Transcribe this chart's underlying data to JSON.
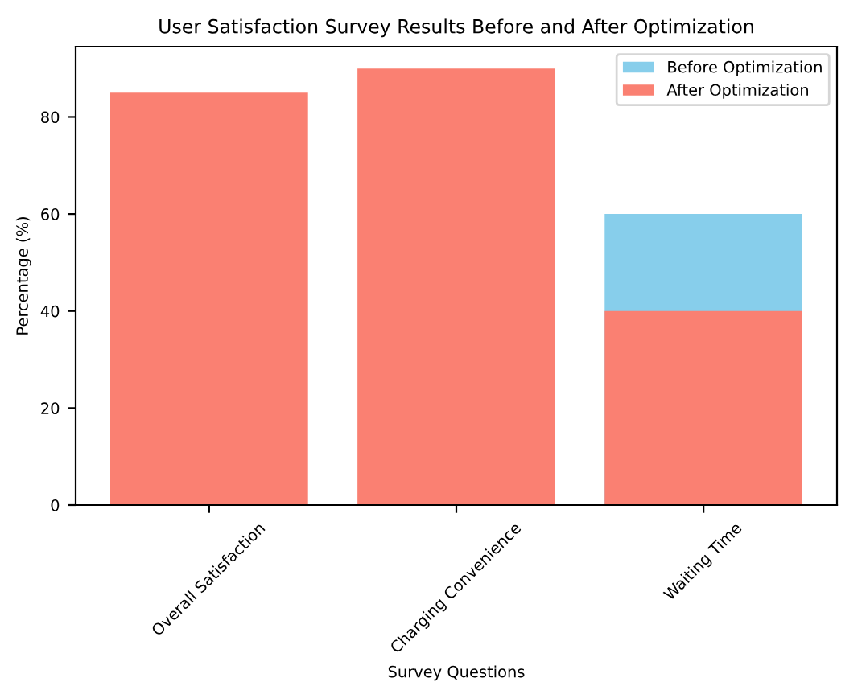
{
  "chart_data": {
    "type": "bar",
    "title": "User Satisfaction Survey Results Before and After Optimization",
    "xlabel": "Survey Questions",
    "ylabel": "Percentage (%)",
    "categories": [
      "Overall Satisfaction",
      "Charging Convenience",
      "Waiting Time"
    ],
    "series": [
      {
        "name": "Before Optimization",
        "color": "#87ceeb",
        "values": [
          null,
          null,
          60
        ]
      },
      {
        "name": "After Optimization",
        "color": "#fa8072",
        "values": [
          85,
          90,
          40
        ]
      }
    ],
    "ylim": [
      0,
      94.5
    ],
    "yticks": [
      0,
      20,
      40,
      60,
      80
    ],
    "grid": false,
    "legend": "top right"
  }
}
